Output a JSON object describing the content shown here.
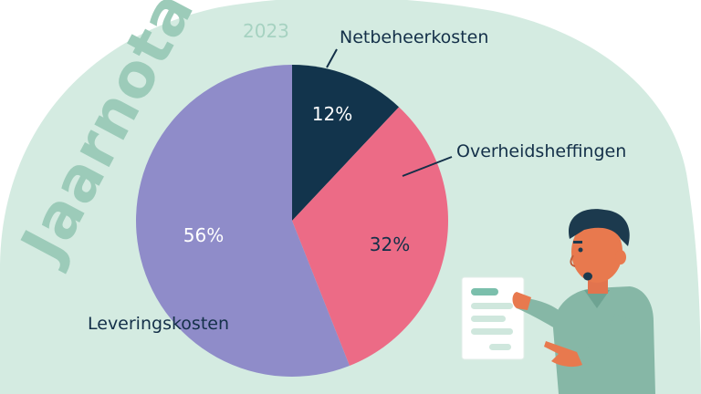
{
  "header": {
    "title": "Jaarnota",
    "year": "2023"
  },
  "colors": {
    "background_blob": "#d4ebe1",
    "netbeheer": "#12344c",
    "overheid": "#ec6b86",
    "levering": "#8f8cc9",
    "label_text": "#143049"
  },
  "chart_data": {
    "type": "pie",
    "slices": [
      {
        "label": "Netbeheerkosten",
        "value": 12,
        "display": "12%"
      },
      {
        "label": "Overheidsheffingen",
        "value": 32,
        "display": "32%"
      },
      {
        "label": "Leveringskosten",
        "value": 56,
        "display": "56%"
      }
    ],
    "legend": "callout-labels"
  }
}
